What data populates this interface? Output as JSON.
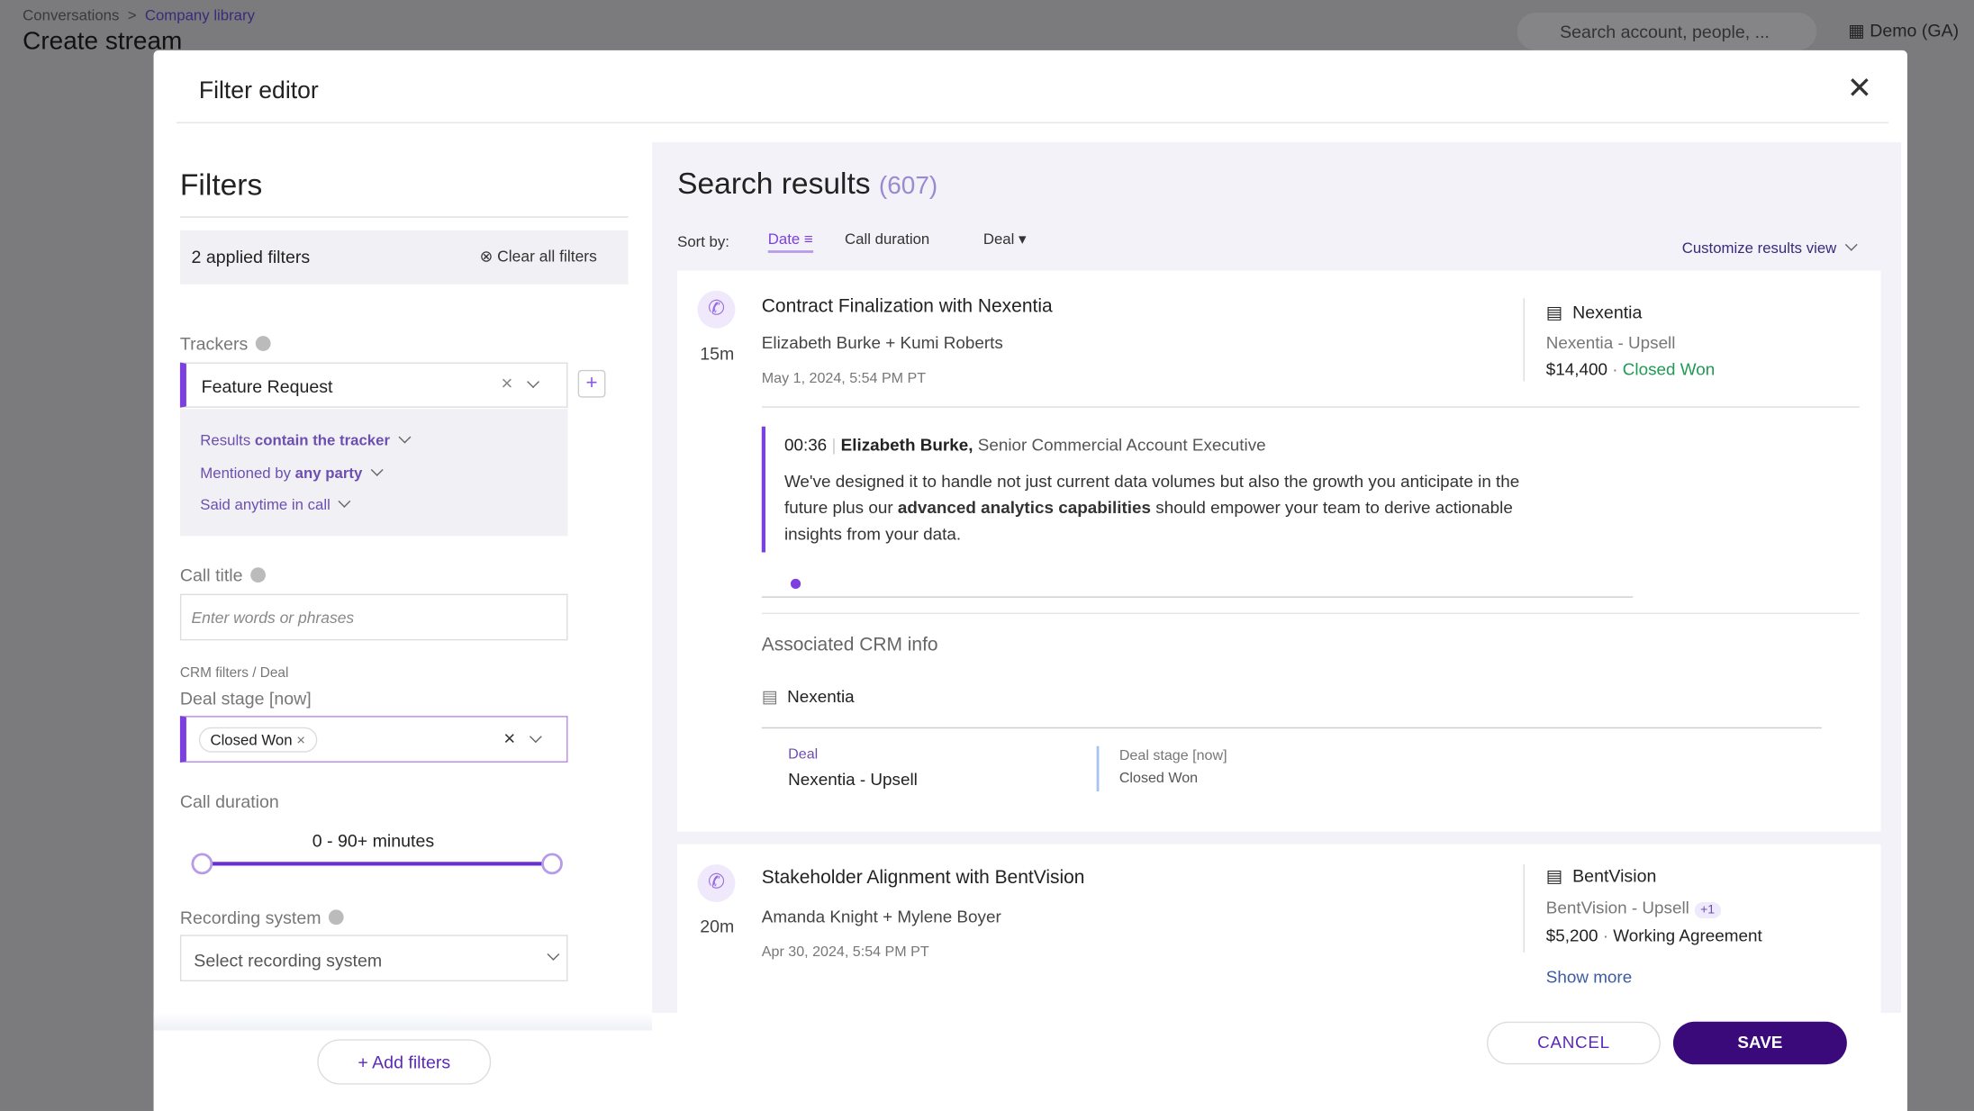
{
  "header": {
    "breadcrumb": [
      "Conversations",
      "Company library"
    ],
    "title": "Create stream",
    "search_placeholder": "Search account, people, ...",
    "workspace": "Demo (GA)"
  },
  "modal": {
    "title": "Filter editor"
  },
  "filters": {
    "title": "Filters",
    "applied": "2 applied filters",
    "clear": "Clear all filters",
    "trackers_label": "Trackers",
    "tracker": "Feature Request",
    "tracker_options": [
      [
        "Results",
        "contain the tracker"
      ],
      [
        "Mentioned by",
        "any party"
      ],
      [
        "Said anytime in call"
      ]
    ],
    "call_title_label": "Call title",
    "call_title_placeholder": "Enter words or phrases",
    "crm_path": "CRM filters / Deal",
    "deal_stage_label": "Deal stage [now]",
    "deal_stage_chip": "Closed Won",
    "duration_label": "Call duration",
    "duration_value": "0 - 90+ minutes",
    "recording_label": "Recording system",
    "recording_placeholder": "Select recording system",
    "add": "Add filters"
  },
  "results": {
    "title": "Search results",
    "count": "(607)",
    "sort_label": "Sort by:",
    "sort_options": [
      "Date",
      "Call duration",
      "Deal"
    ],
    "customize": "Customize results view",
    "items": [
      {
        "title": "Contract Finalization with Nexentia",
        "participants": "Elizabeth Burke + Kumi Roberts",
        "date": "May 1, 2024, 5:54 PM PT",
        "duration": "15m",
        "account": "Nexentia",
        "deal": "Nexentia - Upsell",
        "amount": "$14,400",
        "stage": "Closed Won",
        "snippet": {
          "time": "00:36",
          "speaker": "Elizabeth Burke,",
          "role": "Senior Commercial Account Executive",
          "text": [
            "We've designed it to handle not just current data volumes but also the growth you anticipate in the future plus our ",
            "advanced analytics capabilities",
            " should empower your team to derive actionable insights from your data."
          ]
        },
        "crm": {
          "title": "Associated CRM info",
          "account": "Nexentia",
          "deal_label": "Deal",
          "deal": "Nexentia - Upsell",
          "stage_label": "Deal stage [now]",
          "stage": "Closed Won"
        }
      },
      {
        "title": "Stakeholder Alignment with BentVision",
        "participants": "Amanda Knight + Mylene Boyer",
        "date": "Apr 30, 2024, 5:54 PM PT",
        "duration": "20m",
        "account": "BentVision",
        "deal": "BentVision - Upsell",
        "extra": "+1",
        "amount": "$5,200",
        "stage": "Working Agreement",
        "more": "Show more"
      }
    ]
  },
  "footer": {
    "cancel": "CANCEL",
    "save": "SAVE"
  }
}
